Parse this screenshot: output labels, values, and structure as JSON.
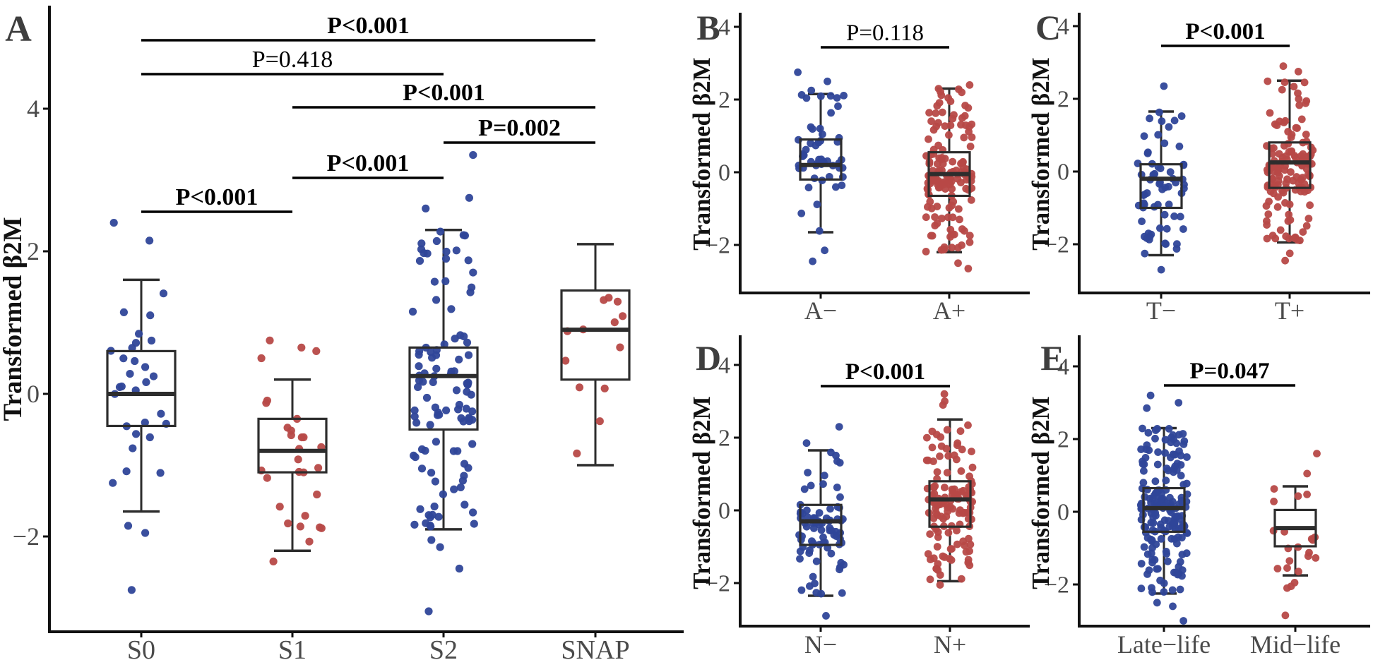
{
  "figure": {
    "background": "#ffffff"
  },
  "colors": {
    "blue": "#2F4699",
    "red": "#B74947",
    "box_stroke": "#2d2d2d",
    "axis": "#111111",
    "tick_text": "#4a4a4a",
    "panel_letter": "#3e3e3e",
    "p_text": "#000000"
  },
  "chart_data": [
    {
      "type": "box",
      "panel_label": "A",
      "ylabel": "Transformed β2M",
      "ytick_labels": [
        "4",
        "2",
        "0",
        "−2"
      ],
      "ytick_values": [
        4,
        2,
        0,
        -2
      ],
      "ylim": [
        -3.3,
        5.4
      ],
      "grid": false,
      "legend": "none",
      "groups": [
        {
          "label": "S0",
          "color": "blue",
          "n": 28,
          "box": {
            "low": -1.65,
            "q1": -0.45,
            "median": 0.0,
            "q3": 0.6,
            "high": 1.6
          },
          "outliers": [
            2.4,
            2.15,
            -1.85,
            -1.95,
            -2.75
          ]
        },
        {
          "label": "S1",
          "color": "red",
          "n": 24,
          "box": {
            "low": -2.2,
            "q1": -1.1,
            "median": -0.8,
            "q3": -0.35,
            "high": 0.2
          },
          "outliers": [
            0.75,
            0.65,
            0.6,
            0.5,
            -2.35
          ]
        },
        {
          "label": "S2",
          "color": "blue",
          "n": 105,
          "box": {
            "low": -1.9,
            "q1": -0.5,
            "median": 0.25,
            "q3": 0.65,
            "high": 2.3
          },
          "outliers": [
            3.35,
            2.75,
            2.6,
            -2.05,
            -2.15,
            -2.45,
            -3.05
          ]
        },
        {
          "label": "SNAP",
          "color": "red",
          "n": 13,
          "box": {
            "low": -1.0,
            "q1": 0.2,
            "median": 0.9,
            "q3": 1.45,
            "high": 2.1
          },
          "outliers": []
        }
      ],
      "comparisons": [
        {
          "between": [
            "S0",
            "SNAP"
          ],
          "p_label": "P<0.001",
          "bold": true
        },
        {
          "between": [
            "S0",
            "S2"
          ],
          "p_label": "P=0.418",
          "bold": false
        },
        {
          "between": [
            "S1",
            "SNAP"
          ],
          "p_label": "P<0.001",
          "bold": true
        },
        {
          "between": [
            "S2",
            "SNAP"
          ],
          "p_label": "P=0.002",
          "bold": true
        },
        {
          "between": [
            "S1",
            "S2"
          ],
          "p_label": "P<0.001",
          "bold": true
        },
        {
          "between": [
            "S0",
            "S1"
          ],
          "p_label": "P<0.001",
          "bold": true
        }
      ]
    },
    {
      "type": "box",
      "panel_label": "B",
      "ylabel": "Transformed β2M",
      "ytick_labels": [
        "4",
        "2",
        "0",
        "−2"
      ],
      "ytick_values": [
        4,
        2,
        0,
        -2
      ],
      "ylim": [
        -3.3,
        4.4
      ],
      "grid": false,
      "legend": "none",
      "groups": [
        {
          "label": "A−",
          "color": "blue",
          "n": 50,
          "box": {
            "low": -1.65,
            "q1": -0.2,
            "median": 0.2,
            "q3": 0.9,
            "high": 2.15
          },
          "outliers": [
            2.75,
            2.5,
            2.25,
            -2.15,
            -2.45
          ]
        },
        {
          "label": "A+",
          "color": "red",
          "n": 145,
          "box": {
            "low": -2.2,
            "q1": -0.65,
            "median": -0.05,
            "q3": 0.55,
            "high": 2.3
          },
          "outliers": [
            2.4,
            -2.5,
            -2.65
          ]
        }
      ],
      "comparisons": [
        {
          "between": [
            "A−",
            "A+"
          ],
          "p_label": "P=0.118",
          "bold": false
        }
      ]
    },
    {
      "type": "box",
      "panel_label": "C",
      "ylabel": "Transformed β2M",
      "ytick_labels": [
        "4",
        "2",
        "0",
        "−2"
      ],
      "ytick_values": [
        4,
        2,
        0,
        -2
      ],
      "ylim": [
        -3.3,
        4.4
      ],
      "grid": false,
      "legend": "none",
      "groups": [
        {
          "label": "T−",
          "color": "blue",
          "n": 62,
          "box": {
            "low": -2.3,
            "q1": -1.0,
            "median": -0.2,
            "q3": 0.2,
            "high": 1.65
          },
          "outliers": [
            2.35,
            -2.7
          ]
        },
        {
          "label": "T+",
          "color": "red",
          "n": 135,
          "box": {
            "low": -1.95,
            "q1": -0.45,
            "median": 0.25,
            "q3": 0.8,
            "high": 2.5
          },
          "outliers": [
            2.9,
            2.75,
            -2.25,
            -2.45
          ]
        }
      ],
      "comparisons": [
        {
          "between": [
            "T−",
            "T+"
          ],
          "p_label": "P<0.001",
          "bold": true
        }
      ]
    },
    {
      "type": "box",
      "panel_label": "D",
      "ylabel": "Transformed β2M",
      "ytick_labels": [
        "4",
        "2",
        "0",
        "−2"
      ],
      "ytick_values": [
        4,
        2,
        0,
        -2
      ],
      "ylim": [
        -3.2,
        4.8
      ],
      "grid": false,
      "legend": "none",
      "groups": [
        {
          "label": "N−",
          "color": "blue",
          "n": 78,
          "box": {
            "low": -2.35,
            "q1": -0.95,
            "median": -0.3,
            "q3": 0.15,
            "high": 1.65
          },
          "outliers": [
            2.3,
            1.85,
            -2.9
          ]
        },
        {
          "label": "N+",
          "color": "red",
          "n": 135,
          "box": {
            "low": -1.95,
            "q1": -0.45,
            "median": 0.3,
            "q3": 0.8,
            "high": 2.5
          },
          "outliers": [
            3.2,
            3.0,
            2.9,
            -2.05
          ]
        }
      ],
      "comparisons": [
        {
          "between": [
            "N−",
            "N+"
          ],
          "p_label": "P<0.001",
          "bold": true
        }
      ]
    },
    {
      "type": "box",
      "panel_label": "E",
      "ylabel": "Transformed β2M",
      "ytick_labels": [
        "4",
        "2",
        "0",
        "−2"
      ],
      "ytick_values": [
        4,
        2,
        0,
        -2
      ],
      "ylim": [
        -3.2,
        4.8
      ],
      "grid": false,
      "legend": "none",
      "groups": [
        {
          "label": "Late−life",
          "color": "blue",
          "n": 180,
          "box": {
            "low": -2.25,
            "q1": -0.55,
            "median": 0.1,
            "q3": 0.65,
            "high": 2.3
          },
          "outliers": [
            3.2,
            3.0,
            2.85,
            -2.5,
            -2.6,
            -3.0
          ]
        },
        {
          "label": "Mid−life",
          "color": "red",
          "n": 18,
          "box": {
            "low": -1.75,
            "q1": -0.95,
            "median": -0.45,
            "q3": 0.05,
            "high": 0.7
          },
          "outliers": [
            1.6,
            1.05,
            -1.95,
            -2.05,
            -2.1,
            -2.85
          ]
        }
      ],
      "comparisons": [
        {
          "between": [
            "Late−life",
            "Mid−life"
          ],
          "p_label": "P=0.047",
          "bold": true
        }
      ]
    }
  ]
}
